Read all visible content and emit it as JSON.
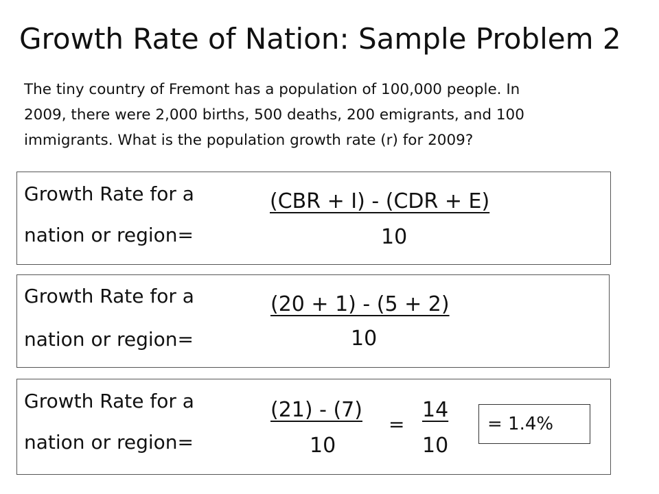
{
  "title": "Growth Rate of Nation: Sample Problem 2",
  "problem_lines": [
    "The tiny country of Fremont has a population of 100,000 people.  In",
    "2009, there were  2,000 births, 500 deaths, 200 emigrants, and 100",
    "immigrants.  What is the population growth rate (r) for 2009?"
  ],
  "label_line1": "Growth Rate for a",
  "label_line2": "nation or region=",
  "formula1": {
    "numerator": "(CBR + I) - (CDR + E)",
    "denominator": "10"
  },
  "formula2": {
    "numerator": "(20 + 1) - (5 + 2)",
    "denominator": "10"
  },
  "formula3": {
    "numerator": "(21) - (7)",
    "denominator": "10",
    "equals": "=",
    "result_numerator": "14",
    "result_denominator": "10",
    "answer": "= 1.4%"
  }
}
